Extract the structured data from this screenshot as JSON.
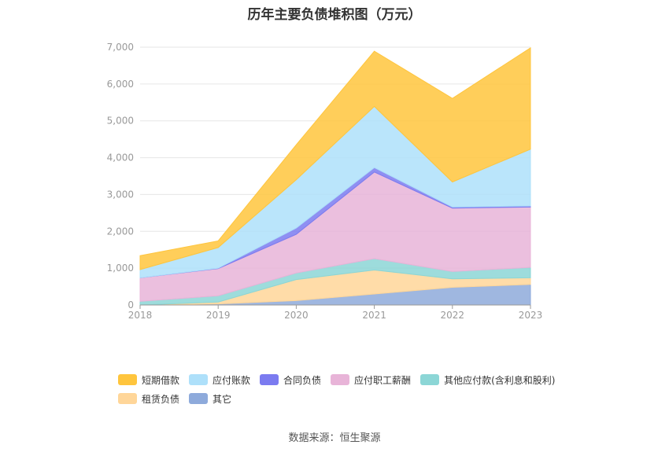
{
  "chart_data": {
    "type": "area",
    "stacked": true,
    "title": "历年主要负债堆积图（万元）",
    "categories": [
      "2018",
      "2019",
      "2020",
      "2021",
      "2022",
      "2023"
    ],
    "ylim": [
      0,
      7000
    ],
    "yticks": [
      "0",
      "1,000",
      "2,000",
      "3,000",
      "4,000",
      "5,000",
      "6,000",
      "7,000"
    ],
    "grid": true,
    "legend_position": "bottom",
    "series": [
      {
        "name": "其它",
        "color": "#8eaadb",
        "values": [
          0,
          30,
          120,
          300,
          480,
          560
        ]
      },
      {
        "name": "租赁负债",
        "color": "#ffd699",
        "values": [
          0,
          50,
          570,
          650,
          230,
          180
        ]
      },
      {
        "name": "其他应付款(含利息和股利)",
        "color": "#8cd6d6",
        "values": [
          100,
          170,
          180,
          310,
          200,
          280
        ]
      },
      {
        "name": "应付职工薪酬",
        "color": "#e8b4d8",
        "values": [
          640,
          740,
          1050,
          2350,
          1720,
          1640
        ]
      },
      {
        "name": "合同负债",
        "color": "#7b7bf0",
        "values": [
          0,
          10,
          170,
          120,
          30,
          30
        ]
      },
      {
        "name": "应付账款",
        "color": "#aee0fa",
        "values": [
          220,
          560,
          1310,
          1660,
          680,
          1540
        ]
      },
      {
        "name": "短期借款",
        "color": "#ffc53d",
        "values": [
          380,
          180,
          950,
          1500,
          2270,
          2750
        ]
      }
    ]
  },
  "legend": {
    "rows": [
      [
        "短期借款",
        "应付账款",
        "合同负债",
        "应付职工薪酬",
        "其他应付款(含利息和股利)"
      ],
      [
        "租赁负债",
        "其它"
      ]
    ]
  },
  "source_text": "数据来源：恒生聚源"
}
